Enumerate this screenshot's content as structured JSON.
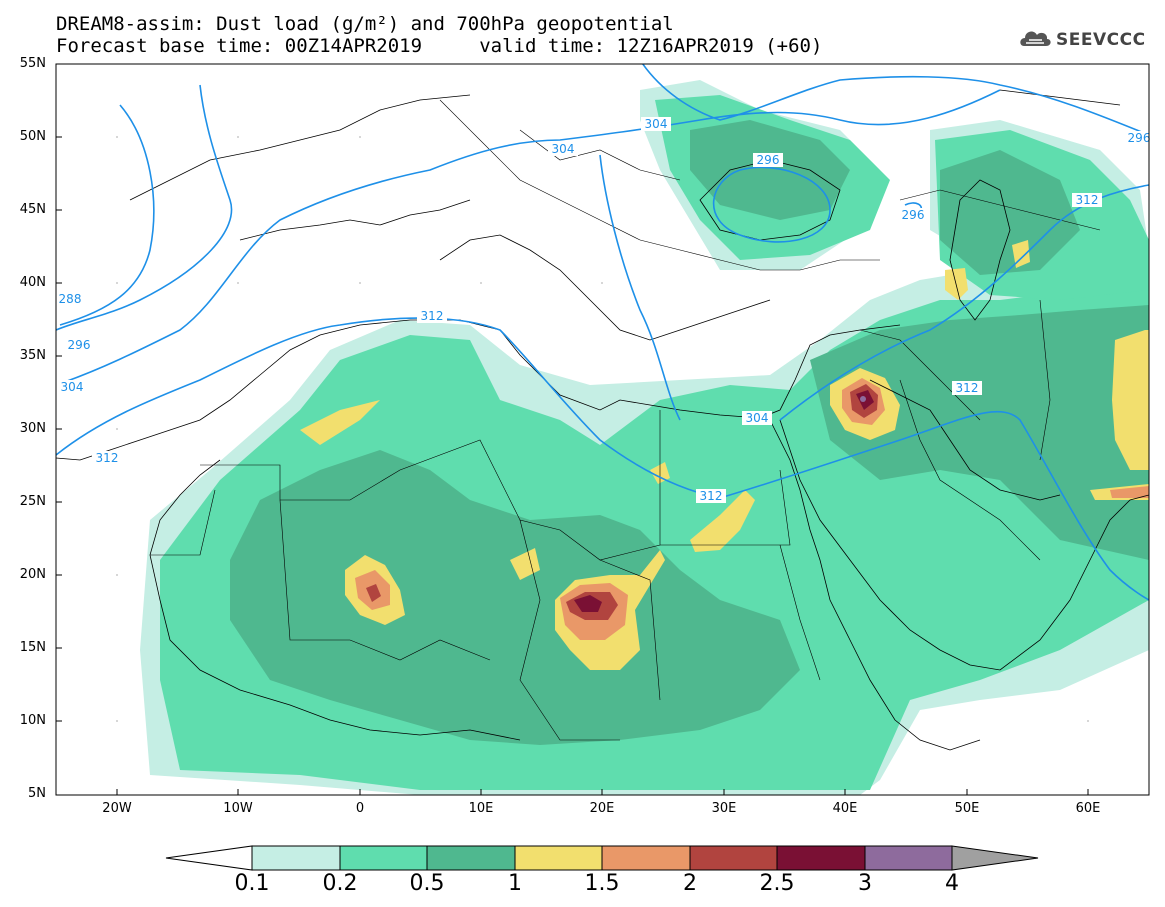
{
  "title": {
    "line1": "DREAM8-assim: Dust load (g/m²) and 700hPa geopotential",
    "line2": "Forecast base time: 00Z14APR2019     valid time: 12Z16APR2019 (+60)"
  },
  "logo": {
    "text": "SEEVCCC",
    "icon": "cloud-logo-icon"
  },
  "map": {
    "lat_range": [
      5,
      55
    ],
    "lon_range": [
      -25,
      65
    ],
    "lat_labels": [
      "55N",
      "50N",
      "45N",
      "40N",
      "35N",
      "30N",
      "25N",
      "20N",
      "15N",
      "10N",
      "5N"
    ],
    "lon_labels": [
      "20W",
      "10W",
      "0",
      "10E",
      "20E",
      "30E",
      "40E",
      "50E",
      "60E"
    ],
    "contour_labels": [
      "304",
      "296",
      "296",
      "304",
      "288",
      "296",
      "304",
      "312",
      "312",
      "312",
      "304",
      "312",
      "312",
      "296"
    ]
  },
  "colorbar": {
    "levels": [
      "0.1",
      "0.2",
      "0.5",
      "1",
      "1.5",
      "2",
      "2.5",
      "3",
      "4"
    ],
    "colors": [
      "#c5eee4",
      "#5fddae",
      "#4fb88f",
      "#f2df6e",
      "#e99868",
      "#b1443f",
      "#7a1034",
      "#8e6b9d"
    ],
    "under_color": "#ffffff",
    "over_color": "#a0a0a0"
  }
}
